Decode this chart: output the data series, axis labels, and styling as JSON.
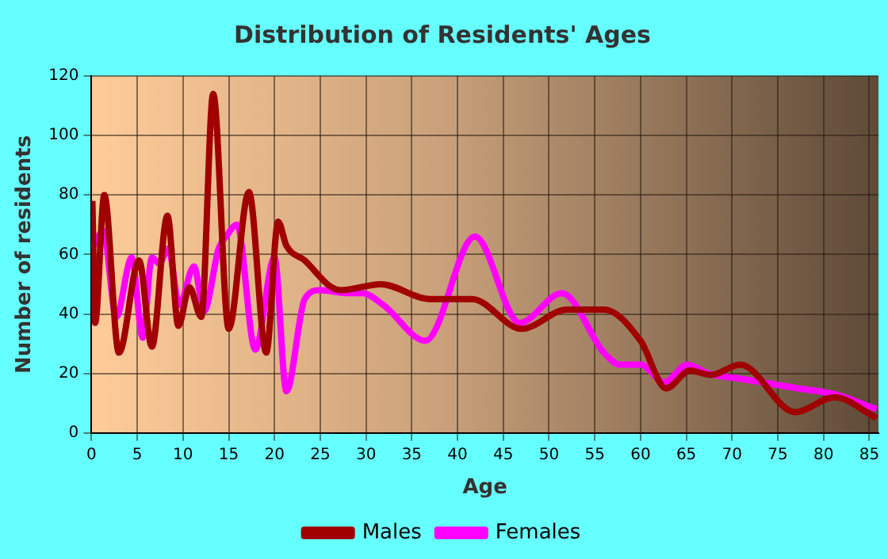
{
  "chart_data": {
    "type": "line",
    "title": "Distribution of Residents' Ages",
    "xlabel": "Age",
    "ylabel": "Number of residents",
    "xlim": [
      0,
      86
    ],
    "xticks": [
      0,
      5,
      10,
      15,
      20,
      25,
      30,
      35,
      40,
      45,
      50,
      55,
      60,
      65,
      70,
      75,
      80,
      85
    ],
    "ylim": [
      0,
      120
    ],
    "yticks": [
      0,
      20,
      40,
      60,
      80,
      100,
      120
    ],
    "grid": true,
    "legend": "bottom",
    "marker": "none",
    "line_style": "solid",
    "series": [
      {
        "name": "Males",
        "color": "#a00000",
        "x": [
          0.1,
          0.4,
          1.4,
          3,
          5.2,
          6.6,
          8.3,
          9.5,
          10.7,
          12,
          13.3,
          15,
          17.2,
          19.1,
          20.4,
          21.3,
          23.3,
          26.2,
          27.3,
          31.6,
          37,
          41.6,
          47,
          52,
          56,
          60,
          62.8,
          65.4,
          67.7,
          70.9,
          76.9,
          81.2,
          85.8
        ],
        "values": [
          78,
          37,
          80,
          27,
          58,
          29,
          73,
          36,
          49,
          39,
          114,
          35,
          81,
          27,
          71,
          63,
          58,
          49,
          48,
          50,
          45,
          45,
          35,
          41.5,
          41.5,
          31,
          15,
          21,
          19.5,
          23,
          7,
          12,
          5
        ]
      },
      {
        "name": "Females",
        "color": "#ff00ff",
        "x": [
          0.1,
          1.3,
          2.7,
          4.4,
          5.6,
          6.6,
          7.4,
          8.4,
          9.6,
          11.2,
          12.3,
          13.9,
          14.7,
          15.9,
          17.9,
          20,
          21.3,
          23.3,
          25,
          27.9,
          29.6,
          31.9,
          36.5,
          41.9,
          46.8,
          51.4,
          56,
          57.7,
          60,
          62.6,
          65.1,
          67.4,
          71.4,
          77.2,
          81.2,
          85.8
        ],
        "values": [
          62,
          68,
          39,
          59,
          32,
          59,
          57,
          62,
          43,
          56,
          41,
          62,
          66,
          70,
          28,
          59,
          14,
          45,
          48,
          47,
          47,
          43,
          31,
          66,
          37,
          47,
          27,
          23,
          23,
          17,
          23,
          20,
          18,
          15,
          13,
          8
        ]
      }
    ]
  }
}
